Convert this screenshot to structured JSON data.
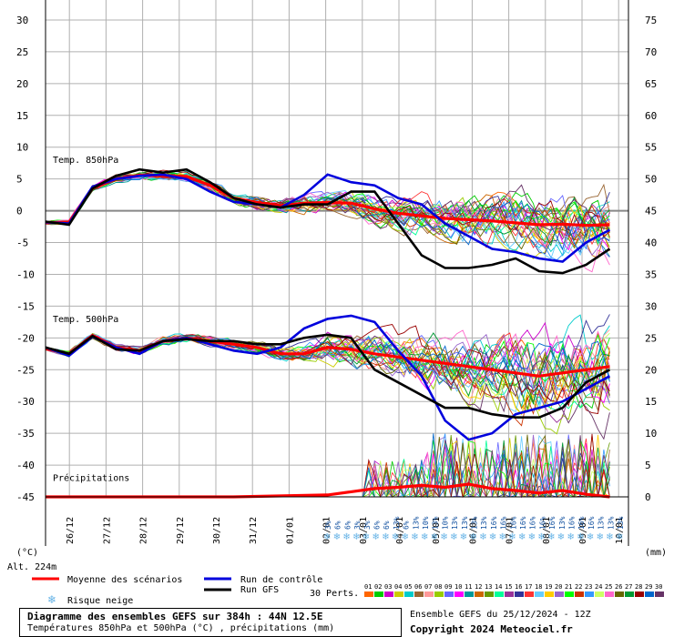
{
  "chart_data": {
    "type": "line",
    "title": "Diagramme des ensembles GEFS sur 384h : 44N 12.5E",
    "subtitle": "Températures 850hPa et 500hPa (°C) , précipitations (mm)",
    "run_info": "Ensemble GEFS du 25/12/2024 - 12Z",
    "copyright": "Copyright 2024 Meteociel.fr",
    "altitude": "Alt. 224m",
    "left_unit": "(°C)",
    "right_unit": "(mm)",
    "y_left_ticks": [
      "30",
      "25",
      "20",
      "15",
      "10",
      "5",
      "0",
      "-5",
      "-10",
      "-15",
      "-20",
      "-25",
      "-30",
      "-35",
      "-40",
      "-45"
    ],
    "y_right_ticks": [
      "75",
      "70",
      "65",
      "60",
      "55",
      "50",
      "45",
      "40",
      "35",
      "30",
      "25",
      "20",
      "15",
      "10",
      "5",
      "0"
    ],
    "ylim_left": [
      -45,
      30
    ],
    "ylim_right": [
      0,
      75
    ],
    "x_dates": [
      "26/12",
      "27/12",
      "28/12",
      "29/12",
      "30/12",
      "31/12",
      "01/01",
      "02/01",
      "03/01",
      "04/01",
      "05/01",
      "06/01",
      "07/01",
      "08/01",
      "09/01",
      "10/01"
    ],
    "panel_labels": [
      "Temp. 850hPa",
      "Temp. 500hPa",
      "Précipitations"
    ],
    "legend": {
      "mean": "Moyenne des scénarios",
      "control": "Run de contrôle",
      "gfs": "Run GFS",
      "snow": "Risque neige",
      "perts_label": "30 Perts.",
      "pert_ids": [
        "01",
        "02",
        "03",
        "04",
        "05",
        "06",
        "07",
        "08",
        "09",
        "10",
        "11",
        "12",
        "13",
        "14",
        "15",
        "16",
        "17",
        "18",
        "19",
        "20",
        "21",
        "22",
        "23",
        "24",
        "25",
        "26",
        "27",
        "28",
        "29",
        "30"
      ],
      "pert_colors": [
        "#ff6600",
        "#00cc00",
        "#cc00cc",
        "#cccc00",
        "#00cccc",
        "#996633",
        "#ff9999",
        "#99cc00",
        "#6666ff",
        "#ff00ff",
        "#009999",
        "#cc6600",
        "#669900",
        "#00ff99",
        "#993399",
        "#333399",
        "#ff3333",
        "#66ccff",
        "#ffcc00",
        "#9966cc",
        "#00ff00",
        "#cc3300",
        "#3399ff",
        "#ccff66",
        "#ff66cc",
        "#666600",
        "#009933",
        "#990000",
        "#0066cc",
        "#663366"
      ]
    },
    "precip_prob_labels": [
      "3%",
      "6%",
      "6%",
      "3%",
      "3%",
      "6%",
      "6%",
      "13%",
      "6%",
      "13%",
      "10%",
      "13%",
      "10%",
      "13%",
      "13%",
      "13%",
      "13%",
      "16%",
      "16%",
      "16%",
      "16%",
      "16%",
      "16%",
      "16%",
      "13%",
      "16%",
      "16%",
      "16%",
      "13%",
      "13%",
      "13%"
    ],
    "series": [
      {
        "name": "Moyenne des scénarios",
        "panel": "850",
        "color": "#ff0000",
        "points": [
          [
            0,
            -1.9
          ],
          [
            0.5,
            -1.8
          ],
          [
            1,
            3.5
          ],
          [
            1.5,
            5
          ],
          [
            2,
            5.6
          ],
          [
            2.5,
            5.5
          ],
          [
            3,
            5.4
          ],
          [
            3.5,
            4
          ],
          [
            4,
            2
          ],
          [
            4.5,
            1.3
          ],
          [
            5,
            0.8
          ],
          [
            5.5,
            1.2
          ],
          [
            6,
            1.3
          ],
          [
            6.5,
            1.2
          ],
          [
            7,
            0.3
          ],
          [
            7.5,
            -0.4
          ],
          [
            8,
            -0.8
          ],
          [
            8.5,
            -1.2
          ],
          [
            9,
            -1.4
          ],
          [
            9.5,
            -1.6
          ],
          [
            10,
            -1.9
          ],
          [
            10.5,
            -2.2
          ],
          [
            11,
            -2.1
          ],
          [
            11.5,
            -2.3
          ],
          [
            12,
            -2.2
          ]
        ]
      },
      {
        "name": "Run de contrôle",
        "panel": "850",
        "color": "#0000dd",
        "points": [
          [
            0,
            -1.8
          ],
          [
            0.5,
            -2
          ],
          [
            1,
            3.8
          ],
          [
            1.5,
            5
          ],
          [
            2,
            5.5
          ],
          [
            2.5,
            5.7
          ],
          [
            3,
            5
          ],
          [
            3.5,
            3
          ],
          [
            4,
            1.4
          ],
          [
            4.5,
            1
          ],
          [
            5,
            0.5
          ],
          [
            5.5,
            2.5
          ],
          [
            6,
            5.7
          ],
          [
            6.5,
            4.5
          ],
          [
            7,
            4
          ],
          [
            7.5,
            2
          ],
          [
            8,
            1
          ],
          [
            8.5,
            -2
          ],
          [
            9,
            -4
          ],
          [
            9.5,
            -6
          ],
          [
            10,
            -6.5
          ],
          [
            10.5,
            -7.5
          ],
          [
            11,
            -8
          ],
          [
            11.5,
            -5
          ],
          [
            12,
            -3
          ]
        ]
      },
      {
        "name": "Run GFS",
        "panel": "850",
        "color": "#000000",
        "points": [
          [
            0,
            -1.7
          ],
          [
            0.5,
            -2.2
          ],
          [
            1,
            3.5
          ],
          [
            1.5,
            5.5
          ],
          [
            2,
            6.5
          ],
          [
            2.5,
            6
          ],
          [
            3,
            6.5
          ],
          [
            3.5,
            4.5
          ],
          [
            4,
            2
          ],
          [
            4.5,
            1
          ],
          [
            5,
            0.5
          ],
          [
            5.5,
            1
          ],
          [
            6,
            1
          ],
          [
            6.5,
            3
          ],
          [
            7,
            3
          ],
          [
            7.5,
            -2
          ],
          [
            8,
            -7
          ],
          [
            8.5,
            -9
          ],
          [
            9,
            -9
          ],
          [
            9.5,
            -8.5
          ],
          [
            10,
            -7.5
          ],
          [
            10.5,
            -9.5
          ],
          [
            11,
            -9.8
          ],
          [
            11.5,
            -8.5
          ],
          [
            12,
            -6
          ]
        ]
      },
      {
        "name": "Moyenne des scénarios",
        "panel": "500",
        "color": "#ff0000",
        "points": [
          [
            0,
            -21.7
          ],
          [
            0.5,
            -22.5
          ],
          [
            1,
            -19.6
          ],
          [
            1.5,
            -21.5
          ],
          [
            2,
            -22
          ],
          [
            2.5,
            -20.5
          ],
          [
            3,
            -20
          ],
          [
            3.5,
            -20.5
          ],
          [
            4,
            -21
          ],
          [
            4.5,
            -21.5
          ],
          [
            5,
            -22.5
          ],
          [
            5.5,
            -22.5
          ],
          [
            6,
            -21.5
          ],
          [
            6.5,
            -21.8
          ],
          [
            7,
            -22.5
          ],
          [
            7.5,
            -23
          ],
          [
            8,
            -23.5
          ],
          [
            8.5,
            -24
          ],
          [
            9,
            -24.5
          ],
          [
            9.5,
            -25
          ],
          [
            10,
            -25.5
          ],
          [
            10.5,
            -26
          ],
          [
            11,
            -25.5
          ],
          [
            11.5,
            -25
          ],
          [
            12,
            -24.5
          ]
        ]
      },
      {
        "name": "Run de contrôle",
        "panel": "500",
        "color": "#0000dd",
        "points": [
          [
            0,
            -21.5
          ],
          [
            0.5,
            -22.8
          ],
          [
            1,
            -19.8
          ],
          [
            1.5,
            -21.5
          ],
          [
            2,
            -22.5
          ],
          [
            2.5,
            -20.5
          ],
          [
            3,
            -20
          ],
          [
            3.5,
            -21
          ],
          [
            4,
            -22
          ],
          [
            4.5,
            -22.5
          ],
          [
            5,
            -21.5
          ],
          [
            5.5,
            -18.5
          ],
          [
            6,
            -17
          ],
          [
            6.5,
            -16.5
          ],
          [
            7,
            -17.5
          ],
          [
            7.5,
            -22
          ],
          [
            8,
            -26
          ],
          [
            8.5,
            -33
          ],
          [
            9,
            -36
          ],
          [
            9.5,
            -35
          ],
          [
            10,
            -32
          ],
          [
            10.5,
            -31
          ],
          [
            11,
            -30
          ],
          [
            11.5,
            -28
          ],
          [
            12,
            -26
          ]
        ]
      },
      {
        "name": "Run GFS",
        "panel": "500",
        "color": "#000000",
        "points": [
          [
            0,
            -21.5
          ],
          [
            0.5,
            -22.5
          ],
          [
            1,
            -19.7
          ],
          [
            1.5,
            -21.8
          ],
          [
            2,
            -22
          ],
          [
            2.5,
            -20.5
          ],
          [
            3,
            -20.2
          ],
          [
            3.5,
            -20.5
          ],
          [
            4,
            -20.5
          ],
          [
            4.5,
            -21
          ],
          [
            5,
            -21
          ],
          [
            5.5,
            -20
          ],
          [
            6,
            -19.5
          ],
          [
            6.5,
            -20
          ],
          [
            7,
            -25
          ],
          [
            7.5,
            -27
          ],
          [
            8,
            -29
          ],
          [
            8.5,
            -31
          ],
          [
            9,
            -31
          ],
          [
            9.5,
            -32
          ],
          [
            10,
            -32.5
          ],
          [
            10.5,
            -32.5
          ],
          [
            11,
            -31
          ],
          [
            11.5,
            -27
          ],
          [
            12,
            -25
          ]
        ]
      },
      {
        "name": "Moyenne des scénarios",
        "panel": "precip",
        "color": "#ff0000",
        "points": [
          [
            0,
            0
          ],
          [
            2,
            0
          ],
          [
            4,
            0
          ],
          [
            6,
            0.3
          ],
          [
            6.5,
            0.8
          ],
          [
            7,
            1.3
          ],
          [
            7.5,
            1.5
          ],
          [
            8,
            1.8
          ],
          [
            8.5,
            1.5
          ],
          [
            9,
            2
          ],
          [
            9.5,
            1.3
          ],
          [
            10,
            1
          ],
          [
            10.5,
            0.6
          ],
          [
            11,
            1
          ],
          [
            11.5,
            0.4
          ],
          [
            12,
            0
          ]
        ]
      }
    ]
  }
}
